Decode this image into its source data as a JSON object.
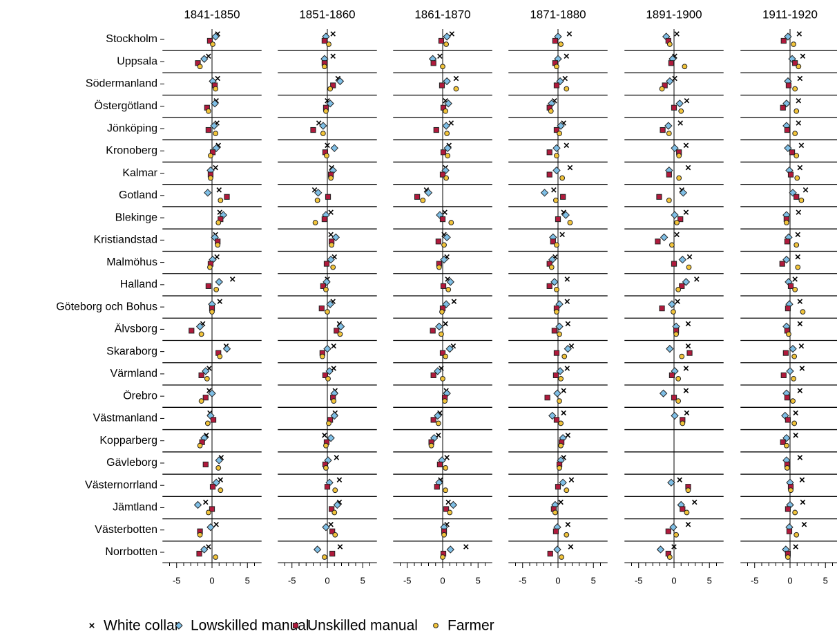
{
  "chart_data": {
    "type": "dot",
    "categories": [
      "Stockholm",
      "Uppsala",
      "Södermanland",
      "Östergötland",
      "Jönköping",
      "Kronoberg",
      "Kalmar",
      "Gotland",
      "Blekinge",
      "Kristiandstad",
      "Malmöhus",
      "Halland",
      "Göteborg och Bohus",
      "Älvsborg",
      "Skaraborg",
      "Värmland",
      "Örebro",
      "Västmanland",
      "Kopparberg",
      "Gävleborg",
      "Västernorrland",
      "Jämtland",
      "Västerbotten",
      "Norrbotten"
    ],
    "series": [
      {
        "name": "White collar",
        "marker": "x",
        "color": "#000000"
      },
      {
        "name": "Lowskilled manual",
        "marker": "diamond",
        "color": "#7fbfe6"
      },
      {
        "name": "Unskilled manual",
        "marker": "square",
        "color": "#b01a3c"
      },
      {
        "name": "Farmer",
        "marker": "circle",
        "color": "#f2c43a"
      }
    ],
    "xlim": [
      -7,
      7
    ],
    "xticks": [
      -5,
      0,
      5
    ],
    "minor_xticks": [
      -6,
      -4,
      -3,
      -2,
      -1,
      1,
      2,
      3,
      4,
      6
    ],
    "panels": [
      {
        "title": "1841-1850",
        "series": [
          {
            "values": [
              0.8,
              -0.5,
              0.8,
              0.6,
              0.7,
              0.9,
              0.5,
              1.0,
              1.1,
              0.5,
              0.7,
              2.9,
              1.1,
              -1.3,
              2.0,
              -0.4,
              -0.4,
              -0.3,
              -0.8,
              1.3,
              1.2,
              -0.9,
              0.6,
              -0.5
            ]
          },
          {
            "values": [
              0.5,
              -1.1,
              0.1,
              0.4,
              0.3,
              0.6,
              -0.2,
              -0.6,
              1.6,
              0.4,
              0.1,
              1.0,
              0,
              -1.7,
              2.1,
              -0.9,
              0,
              -0.2,
              -1.1,
              1.0,
              0.6,
              -2.0,
              -0.2,
              -1.1
            ]
          },
          {
            "values": [
              -0.3,
              -2.0,
              0.4,
              -0.7,
              -0.5,
              0.1,
              -0.2,
              2.1,
              1.2,
              0.8,
              -0.2,
              -0.5,
              0,
              -2.9,
              0.9,
              -1.5,
              -0.9,
              0.2,
              -1.4,
              -0.9,
              0.1,
              0,
              -1.7,
              -1.8
            ]
          },
          {
            "values": [
              0.1,
              -1.7,
              0.5,
              -0.5,
              0.5,
              -0.2,
              -0.2,
              1.2,
              0.9,
              0.8,
              -0.3,
              0.6,
              0,
              -1.5,
              1.1,
              -0.7,
              -1.5,
              -0.6,
              -1.7,
              0.9,
              1.2,
              -0.5,
              -1.7,
              0.5
            ]
          }
        ]
      },
      {
        "title": "1851-1860",
        "series": [
          {
            "values": [
              0.8,
              0.8,
              1.5,
              0,
              -1.2,
              0,
              0.6,
              -1.8,
              0.5,
              0.5,
              1.0,
              0,
              0.8,
              1.7,
              0.9,
              0.9,
              1.1,
              1.1,
              -0.4,
              1.3,
              1.7,
              1.7,
              0.5,
              1.8
            ]
          },
          {
            "values": [
              -0.2,
              -0.4,
              1.8,
              0.4,
              -0.6,
              1.0,
              0.8,
              -1.3,
              -0.2,
              1.2,
              0.5,
              -0.1,
              0.4,
              1.9,
              0,
              0.3,
              1.0,
              1.0,
              0.5,
              0.1,
              0.3,
              1.4,
              -0.2,
              -1.4
            ]
          },
          {
            "values": [
              -0.4,
              -0.4,
              0.8,
              -0.2,
              -2.0,
              -0.3,
              0.5,
              0.1,
              -0.4,
              0.6,
              -0.1,
              -0.6,
              -0.8,
              1.3,
              -0.7,
              -0.3,
              0.8,
              0.4,
              -0.1,
              -0.3,
              0,
              0.6,
              0.7,
              0.7
            ]
          },
          {
            "values": [
              0.2,
              -0.4,
              0.4,
              -0.2,
              -0.6,
              -0.1,
              0.5,
              -1.4,
              -1.7,
              0.6,
              0.8,
              -0.2,
              0,
              1.8,
              -0.7,
              0.1,
              0.9,
              0.2,
              -0.2,
              -0.2,
              1.1,
              1.0,
              1.1,
              -0.4
            ]
          }
        ]
      },
      {
        "title": "1861-1870",
        "series": [
          {
            "values": [
              1.3,
              -0.4,
              1.9,
              0.4,
              1.2,
              0.9,
              0.4,
              -2.3,
              0.3,
              0.2,
              0.6,
              0.7,
              1.6,
              0.4,
              1.5,
              -0.2,
              0.5,
              -0.4,
              -0.6,
              0.6,
              -0.3,
              0.8,
              0.6,
              3.3
            ]
          },
          {
            "values": [
              0.6,
              -1.4,
              0.6,
              0.8,
              0.5,
              0.7,
              0.4,
              -2.0,
              -0.4,
              0.6,
              0.2,
              1.1,
              0.5,
              -0.5,
              1.0,
              -0.7,
              0.6,
              -0.7,
              -1.2,
              -0.1,
              -0.5,
              1.5,
              0.2,
              1.1
            ]
          },
          {
            "values": [
              -0.2,
              -1.3,
              -0.1,
              0.1,
              -0.9,
              0.1,
              0,
              -3.6,
              0,
              -0.6,
              -0.5,
              0.1,
              0,
              -1.4,
              0,
              -1.3,
              0.3,
              -1.3,
              -1.6,
              -0.4,
              -0.8,
              0.5,
              0.2,
              0.1
            ]
          },
          {
            "values": [
              0.5,
              0,
              1.9,
              0.4,
              0.6,
              0.7,
              0.5,
              -2.8,
              1.2,
              0.2,
              -0.5,
              0.8,
              -0.1,
              -0.2,
              0.4,
              0,
              0.3,
              -0.6,
              -1.6,
              0.4,
              0.4,
              1.0,
              0.2,
              0
            ]
          }
        ]
      },
      {
        "title": "1871-1880",
        "series": [
          {
            "values": [
              1.6,
              1.2,
              1.0,
              -0.5,
              0.8,
              1.2,
              1.7,
              -0.6,
              0.8,
              0.6,
              -0.4,
              1.3,
              1.3,
              1.4,
              1.9,
              1.3,
              0.8,
              0.8,
              1.4,
              0.8,
              1.9,
              0.4,
              1.4,
              1.8
            ]
          },
          {
            "values": [
              0,
              0,
              0.3,
              -0.9,
              0.4,
              -0.2,
              -0.2,
              -1.9,
              1.1,
              -0.7,
              -0.8,
              -0.5,
              0.2,
              0.2,
              1.4,
              0.3,
              -0.1,
              -0.8,
              0.7,
              0.4,
              0.7,
              -0.4,
              -0.1,
              -0.1
            ]
          },
          {
            "values": [
              -0.4,
              -0.4,
              -0.2,
              -1.2,
              -0.2,
              -1.2,
              -1.2,
              0.7,
              0,
              -0.7,
              -1.2,
              -1.2,
              -0.2,
              -0.5,
              -0.2,
              -0.3,
              -1.5,
              -0.2,
              0.5,
              0.2,
              0,
              -0.6,
              -0.3,
              -1.1
            ]
          },
          {
            "values": [
              0.4,
              -0.2,
              1.2,
              -1.0,
              0.2,
              -0.2,
              0.6,
              -0.3,
              1.7,
              -0.2,
              -0.9,
              -0.2,
              -0.2,
              0.2,
              0.9,
              0.4,
              0.2,
              0.4,
              0.4,
              0.2,
              1.2,
              -0.4,
              1.2,
              0.5
            ]
          }
        ]
      },
      {
        "title": "1891-1900",
        "series": [
          {
            "values": [
              0.4,
              0.1,
              0.1,
              1.8,
              0.9,
              1.7,
              2.0,
              1.1,
              1.7,
              0.4,
              2.2,
              3.2,
              0.5,
              2.0,
              2.0,
              1.7,
              1.7,
              1.8,
              null,
              null,
              0.8,
              2.9,
              2.0,
              0
            ]
          },
          {
            "values": [
              -1.1,
              -0.2,
              -0.6,
              0.8,
              -0.8,
              0.1,
              -0.7,
              1.3,
              0.1,
              -1.4,
              1.2,
              1.7,
              -0.3,
              0.3,
              -0.6,
              0.1,
              -1.5,
              0.1,
              null,
              null,
              -0.4,
              1.0,
              -0.1,
              -1.9
            ]
          },
          {
            "values": [
              -0.8,
              -0.4,
              -1.3,
              0,
              -1.6,
              0.7,
              -0.7,
              -2.1,
              0.9,
              -2.3,
              0,
              1.1,
              -1.7,
              0.3,
              2.2,
              -0.3,
              0,
              1.2,
              null,
              null,
              2.0,
              1.2,
              -0.8,
              -0.8
            ]
          },
          {
            "values": [
              -0.6,
              1.5,
              -1.7,
              1.0,
              -0.7,
              0.7,
              0.7,
              -0.7,
              0.4,
              -0.3,
              2.1,
              0.6,
              -0.1,
              0.3,
              1.1,
              0.6,
              0.6,
              1.2,
              null,
              null,
              2.0,
              1.8,
              0.3,
              -0.6
            ]
          }
        ]
      },
      {
        "title": "1911-1920",
        "series": [
          {
            "values": [
              1.3,
              1.8,
              1.4,
              1.2,
              1.2,
              1.6,
              1.4,
              2.2,
              1.2,
              1.1,
              1.1,
              0.7,
              1.4,
              1.4,
              1.6,
              1.7,
              1.4,
              0.8,
              0.8,
              1.4,
              1.7,
              1.8,
              2.0,
              0.8
            ]
          },
          {
            "values": [
              -0.3,
              0.3,
              -0.3,
              -0.5,
              -0.5,
              -0.3,
              -0.1,
              0.4,
              -0.5,
              -0.2,
              -0.5,
              -0.2,
              -0.1,
              -0.5,
              0.4,
              0,
              -0.5,
              -0.7,
              -0.5,
              -0.5,
              0,
              0,
              -0.1,
              -0.6
            ]
          },
          {
            "values": [
              -0.9,
              0.7,
              -0.2,
              -1.0,
              -0.4,
              0.3,
              0.1,
              0.9,
              -0.5,
              -0.4,
              -1.1,
              0.1,
              -0.3,
              -0.4,
              -0.6,
              -0.9,
              -0.4,
              -0.3,
              -1.0,
              -0.4,
              0.1,
              -0.3,
              -0.1,
              -0.3
            ]
          },
          {
            "values": [
              0.5,
              1.2,
              0.7,
              0.9,
              0.7,
              0.9,
              1.0,
              1.6,
              -0.5,
              0.9,
              1.1,
              0.7,
              1.8,
              -0.2,
              0.6,
              0.5,
              0.4,
              0.6,
              -0.5,
              -0.4,
              0.1,
              0.7,
              0.9,
              -0.3
            ]
          }
        ]
      }
    ]
  }
}
